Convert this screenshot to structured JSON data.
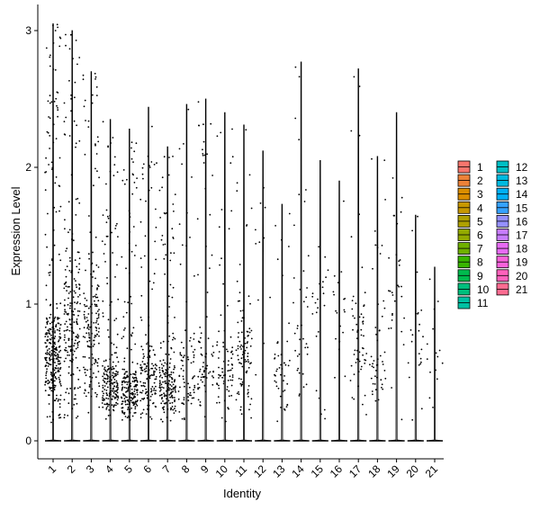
{
  "chart_data": {
    "type": "violin",
    "xlabel": "Identity",
    "ylabel": "Expression Level",
    "ylim": [
      -0.15,
      3.12
    ],
    "yticks": [
      0,
      1,
      2,
      3
    ],
    "categories": [
      "1",
      "2",
      "3",
      "4",
      "5",
      "6",
      "7",
      "8",
      "9",
      "10",
      "11",
      "12",
      "13",
      "14",
      "15",
      "16",
      "17",
      "18",
      "19",
      "20",
      "21"
    ],
    "max_values": [
      3.05,
      3.0,
      2.7,
      2.35,
      2.28,
      2.44,
      2.15,
      2.46,
      2.5,
      2.4,
      2.31,
      2.12,
      1.73,
      2.77,
      2.05,
      1.9,
      2.72,
      2.08,
      2.4,
      1.65,
      1.27
    ],
    "point_density": [
      0.85,
      0.55,
      0.45,
      0.55,
      0.55,
      0.4,
      0.5,
      0.2,
      0.2,
      0.2,
      0.25,
      0.03,
      0.12,
      0.1,
      0.06,
      0.05,
      0.15,
      0.13,
      0.08,
      0.06,
      0.04
    ],
    "cluster_center": [
      0.65,
      1.0,
      0.9,
      0.35,
      0.3,
      0.45,
      0.35,
      0.5,
      0.5,
      0.5,
      0.7,
      1.5,
      0.55,
      1.0,
      1.0,
      1.0,
      0.8,
      0.6,
      1.3,
      0.8,
      0.5
    ],
    "legend_position": "right",
    "colors": [
      "#F8766D",
      "#EC8239",
      "#DB8E00",
      "#C79800",
      "#AFA100",
      "#93AA00",
      "#6FB000",
      "#39B600",
      "#00BB4E",
      "#00BF7D",
      "#00C1A3",
      "#00BFC4",
      "#00BAE0",
      "#00B0F6",
      "#35A2FF",
      "#9590FF",
      "#C77CFF",
      "#E76BF3",
      "#FA62DB",
      "#FF62BC",
      "#FF6C91"
    ],
    "legend_items": [
      "1",
      "2",
      "3",
      "4",
      "5",
      "6",
      "7",
      "8",
      "9",
      "10",
      "11",
      "12",
      "13",
      "14",
      "15",
      "16",
      "17",
      "18",
      "19",
      "20",
      "21"
    ]
  }
}
